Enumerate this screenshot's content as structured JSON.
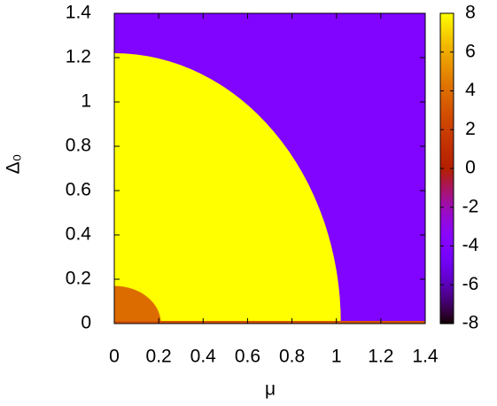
{
  "chart_data": {
    "type": "heatmap",
    "x_label": "μ",
    "y_label": "Δ₀",
    "xlim": [
      0,
      1.4
    ],
    "ylim": [
      0,
      1.4
    ],
    "xticks": [
      0,
      0.2,
      0.4,
      0.6,
      0.8,
      1,
      1.2,
      1.4
    ],
    "yticks": [
      0,
      0.2,
      0.4,
      0.6,
      0.8,
      1,
      1.2,
      1.4
    ],
    "colorbar_lim": [
      -8,
      8
    ],
    "colorbar_ticks": [
      -8,
      -6,
      -4,
      -2,
      0,
      2,
      4,
      6,
      8
    ],
    "colormap": "gnuplot",
    "background_value": -4,
    "regions": [
      {
        "value": 8,
        "mu_radius": 1.02,
        "delta_radius": 1.22
      },
      {
        "value": 4,
        "mu_radius": 0.21,
        "delta_radius": 0.17
      }
    ],
    "baseline_value": 3
  }
}
